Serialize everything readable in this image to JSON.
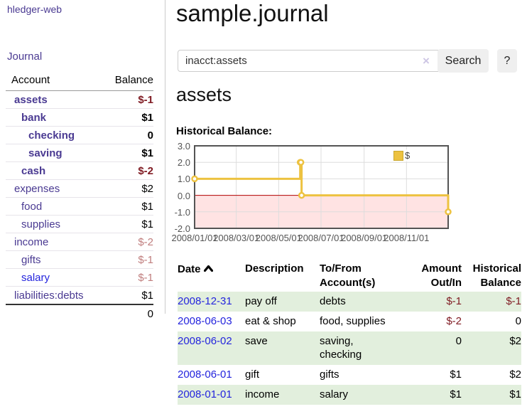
{
  "app": {
    "brand": "hledger-web",
    "nav_journal": "Journal"
  },
  "header": {
    "title": "sample.journal",
    "search_value": "inacct:assets",
    "clear_icon": "×",
    "search_button": "Search",
    "help_button": "?"
  },
  "sidebar": {
    "col_account": "Account",
    "col_balance": "Balance",
    "accounts": [
      {
        "name": "assets",
        "balance": "$-1"
      },
      {
        "name": "bank",
        "balance": "$1"
      },
      {
        "name": "checking",
        "balance": "0"
      },
      {
        "name": "saving",
        "balance": "$1"
      },
      {
        "name": "cash",
        "balance": "$-2"
      },
      {
        "name": "expenses",
        "balance": "$2"
      },
      {
        "name": "food",
        "balance": "$1"
      },
      {
        "name": "supplies",
        "balance": "$1"
      },
      {
        "name": "income",
        "balance": "$-2"
      },
      {
        "name": "gifts",
        "balance": "$-1"
      },
      {
        "name": "salary",
        "balance": "$-1"
      },
      {
        "name": "liabilities:debts",
        "balance": "$1"
      }
    ],
    "total": "0"
  },
  "main": {
    "account_title": "assets",
    "chart_label": "Historical Balance:"
  },
  "chart_data": {
    "type": "line",
    "title": "Historical Balance",
    "legend": [
      {
        "label": "$",
        "color": "#edc240"
      }
    ],
    "ylim": [
      -2,
      3
    ],
    "xrange": [
      "2008-01-01",
      "2008-12-31"
    ],
    "yticks": [
      {
        "v": 3,
        "label": "3.0"
      },
      {
        "v": 2,
        "label": "2.0"
      },
      {
        "v": 1,
        "label": "1.0"
      },
      {
        "v": 0,
        "label": "0.0"
      },
      {
        "v": -1,
        "label": "-1.0"
      },
      {
        "v": -2,
        "label": "-2.0"
      }
    ],
    "xticks": [
      {
        "date": "2008-01-01",
        "label": "2008/01/01"
      },
      {
        "date": "2008-03-01",
        "label": "2008/03/01"
      },
      {
        "date": "2008-05-01",
        "label": "2008/05/01"
      },
      {
        "date": "2008-07-01",
        "label": "2008/07/01"
      },
      {
        "date": "2008-09-01",
        "label": "2008/09/01"
      },
      {
        "date": "2008-11-01",
        "label": "2008/11/01"
      }
    ],
    "series": [
      {
        "name": "$",
        "style": "steps",
        "points": [
          {
            "x": "2008-01-01",
            "y": 1
          },
          {
            "x": "2008-06-01",
            "y": 2
          },
          {
            "x": "2008-06-02",
            "y": 2
          },
          {
            "x": "2008-06-03",
            "y": 0
          },
          {
            "x": "2008-12-31",
            "y": -1
          }
        ]
      }
    ],
    "colors": {
      "line": "#edc240",
      "grid": "#dddddd",
      "border": "#545454",
      "zero_line": "#b00000",
      "negative_zone": "rgba(255,60,60,0.14)"
    }
  },
  "register": {
    "headers": {
      "date": "Date",
      "description": "Description",
      "tofrom": "To/From Account(s)",
      "amount": "Amount Out/In",
      "balance": "Historical Balance"
    },
    "rows": [
      {
        "date": "2008-12-31",
        "description": "pay off",
        "tofrom": "debts",
        "amount": "$-1",
        "balance": "$-1"
      },
      {
        "date": "2008-06-03",
        "description": "eat & shop",
        "tofrom": "food, supplies",
        "amount": "$-2",
        "balance": "0"
      },
      {
        "date": "2008-06-02",
        "description": "save",
        "tofrom": "saving, checking",
        "amount": "0",
        "balance": "$2"
      },
      {
        "date": "2008-06-01",
        "description": "gift",
        "tofrom": "gifts",
        "amount": "$1",
        "balance": "$2"
      },
      {
        "date": "2008-01-01",
        "description": "income",
        "tofrom": "salary",
        "amount": "$1",
        "balance": "$1"
      }
    ]
  },
  "colors": {
    "link_purple": "#4a3a92",
    "link_blue": "#2424dd",
    "negative_strong": "#801c24",
    "negative_light": "#c07e7e",
    "row_stripe_green": "#e2efdd",
    "button_bg": "#efefef"
  }
}
